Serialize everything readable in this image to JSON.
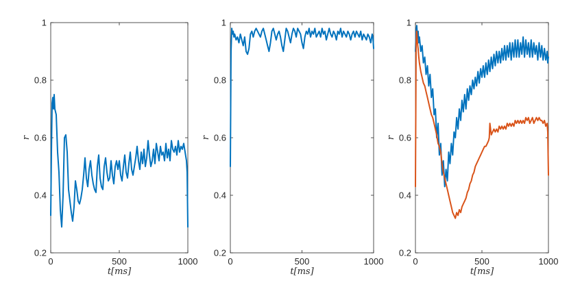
{
  "chart_data": [
    {
      "type": "line",
      "title": "",
      "xlabel": "t[ms]",
      "ylabel": "r",
      "xlim": [
        0,
        1000
      ],
      "ylim": [
        0.2,
        1
      ],
      "xticks": [
        "0",
        "500",
        "1000"
      ],
      "yticks": [
        "0.2",
        "0.4",
        "0.6",
        "0.8",
        "1"
      ],
      "series": [
        {
          "color": "#0072BD",
          "x": [
            0,
            5,
            10,
            15,
            20,
            25,
            30,
            40,
            50,
            60,
            70,
            80,
            90,
            100,
            110,
            120,
            130,
            140,
            150,
            160,
            170,
            180,
            190,
            200,
            210,
            220,
            230,
            240,
            250,
            260,
            270,
            280,
            290,
            300,
            310,
            320,
            330,
            340,
            350,
            360,
            370,
            380,
            390,
            400,
            410,
            420,
            430,
            440,
            450,
            460,
            470,
            480,
            490,
            500,
            510,
            520,
            530,
            540,
            550,
            560,
            570,
            580,
            590,
            600,
            610,
            620,
            630,
            640,
            650,
            660,
            670,
            680,
            690,
            700,
            710,
            720,
            730,
            740,
            750,
            760,
            770,
            780,
            790,
            800,
            810,
            820,
            830,
            840,
            850,
            860,
            870,
            880,
            890,
            900,
            910,
            920,
            930,
            940,
            950,
            960,
            970,
            980,
            990,
            995,
            1000
          ],
          "values": [
            0.33,
            0.55,
            0.72,
            0.74,
            0.7,
            0.75,
            0.7,
            0.68,
            0.55,
            0.48,
            0.35,
            0.29,
            0.4,
            0.6,
            0.61,
            0.55,
            0.42,
            0.38,
            0.34,
            0.31,
            0.36,
            0.45,
            0.42,
            0.38,
            0.37,
            0.39,
            0.42,
            0.47,
            0.53,
            0.46,
            0.43,
            0.49,
            0.52,
            0.47,
            0.44,
            0.42,
            0.41,
            0.5,
            0.54,
            0.46,
            0.43,
            0.42,
            0.5,
            0.53,
            0.48,
            0.45,
            0.46,
            0.52,
            0.47,
            0.44,
            0.5,
            0.52,
            0.49,
            0.52,
            0.47,
            0.45,
            0.5,
            0.54,
            0.48,
            0.46,
            0.51,
            0.55,
            0.49,
            0.47,
            0.5,
            0.53,
            0.57,
            0.52,
            0.49,
            0.55,
            0.51,
            0.56,
            0.5,
            0.53,
            0.59,
            0.54,
            0.5,
            0.52,
            0.56,
            0.51,
            0.58,
            0.55,
            0.52,
            0.57,
            0.54,
            0.55,
            0.52,
            0.58,
            0.53,
            0.56,
            0.52,
            0.59,
            0.56,
            0.55,
            0.57,
            0.54,
            0.59,
            0.55,
            0.57,
            0.56,
            0.58,
            0.55,
            0.52,
            0.48,
            0.29
          ]
        }
      ]
    },
    {
      "type": "line",
      "title": "",
      "xlabel": "t[ms]",
      "ylabel": "r",
      "xlim": [
        0,
        1000
      ],
      "ylim": [
        0.2,
        1
      ],
      "xticks": [
        "0",
        "500",
        "1000"
      ],
      "yticks": [
        "0.2",
        "0.4",
        "0.6",
        "0.8",
        "1"
      ],
      "series": [
        {
          "color": "#0072BD",
          "x": [
            0,
            5,
            10,
            15,
            20,
            25,
            30,
            40,
            50,
            60,
            70,
            80,
            90,
            100,
            110,
            120,
            130,
            140,
            150,
            160,
            170,
            180,
            190,
            200,
            210,
            220,
            230,
            240,
            250,
            260,
            270,
            280,
            290,
            300,
            310,
            320,
            330,
            340,
            350,
            360,
            370,
            380,
            390,
            400,
            410,
            420,
            430,
            440,
            450,
            460,
            470,
            480,
            490,
            500,
            510,
            520,
            530,
            540,
            550,
            560,
            570,
            580,
            590,
            600,
            610,
            620,
            630,
            640,
            650,
            660,
            670,
            680,
            690,
            700,
            710,
            720,
            730,
            740,
            750,
            760,
            770,
            780,
            790,
            800,
            810,
            820,
            830,
            840,
            850,
            860,
            870,
            880,
            890,
            900,
            910,
            920,
            930,
            940,
            950,
            960,
            970,
            980,
            990,
            995,
            1000
          ],
          "values": [
            0.5,
            0.9,
            0.98,
            0.96,
            0.97,
            0.95,
            0.96,
            0.94,
            0.95,
            0.93,
            0.96,
            0.94,
            0.92,
            0.95,
            0.9,
            0.89,
            0.91,
            0.96,
            0.97,
            0.95,
            0.97,
            0.98,
            0.97,
            0.96,
            0.95,
            0.97,
            0.98,
            0.96,
            0.94,
            0.92,
            0.9,
            0.93,
            0.97,
            0.98,
            0.96,
            0.94,
            0.96,
            0.97,
            0.95,
            0.92,
            0.9,
            0.94,
            0.98,
            0.97,
            0.95,
            0.93,
            0.96,
            0.98,
            0.97,
            0.95,
            0.98,
            0.97,
            0.96,
            0.93,
            0.91,
            0.95,
            0.97,
            0.96,
            0.98,
            0.95,
            0.97,
            0.96,
            0.98,
            0.95,
            0.96,
            0.97,
            0.95,
            0.98,
            0.96,
            0.97,
            0.94,
            0.96,
            0.98,
            0.96,
            0.95,
            0.97,
            0.96,
            0.94,
            0.97,
            0.96,
            0.98,
            0.95,
            0.97,
            0.96,
            0.95,
            0.97,
            0.96,
            0.94,
            0.96,
            0.97,
            0.95,
            0.97,
            0.96,
            0.95,
            0.97,
            0.94,
            0.96,
            0.95,
            0.94,
            0.96,
            0.95,
            0.93,
            0.96,
            0.95,
            0.91
          ]
        }
      ]
    },
    {
      "type": "line",
      "title": "",
      "xlabel": "t[ms]",
      "ylabel": "r",
      "xlim": [
        0,
        1000
      ],
      "ylim": [
        0.2,
        1
      ],
      "xticks": [
        "0",
        "500",
        "1000"
      ],
      "yticks": [
        "0.2",
        "0.4",
        "0.6",
        "0.8",
        "1"
      ],
      "series": [
        {
          "color": "#0072BD",
          "x": [
            0,
            5,
            10,
            15,
            20,
            25,
            30,
            40,
            50,
            60,
            70,
            80,
            90,
            100,
            110,
            120,
            130,
            140,
            150,
            160,
            170,
            180,
            190,
            200,
            210,
            220,
            230,
            240,
            250,
            260,
            270,
            280,
            290,
            300,
            310,
            320,
            330,
            340,
            350,
            360,
            370,
            380,
            390,
            400,
            410,
            420,
            430,
            440,
            450,
            460,
            470,
            480,
            490,
            500,
            510,
            520,
            530,
            540,
            550,
            560,
            570,
            580,
            590,
            600,
            610,
            620,
            630,
            640,
            650,
            660,
            670,
            680,
            690,
            700,
            710,
            720,
            730,
            740,
            750,
            760,
            770,
            780,
            790,
            800,
            810,
            820,
            830,
            840,
            850,
            860,
            870,
            880,
            890,
            900,
            910,
            920,
            930,
            940,
            950,
            960,
            970,
            980,
            990,
            995,
            1000
          ],
          "values": [
            0.9,
            0.97,
            0.99,
            0.95,
            0.97,
            0.93,
            0.95,
            0.9,
            0.92,
            0.86,
            0.88,
            0.82,
            0.85,
            0.78,
            0.82,
            0.74,
            0.77,
            0.68,
            0.7,
            0.6,
            0.65,
            0.54,
            0.58,
            0.47,
            0.52,
            0.43,
            0.49,
            0.45,
            0.55,
            0.51,
            0.58,
            0.54,
            0.62,
            0.6,
            0.67,
            0.63,
            0.7,
            0.66,
            0.73,
            0.69,
            0.75,
            0.7,
            0.77,
            0.73,
            0.78,
            0.75,
            0.8,
            0.77,
            0.81,
            0.78,
            0.83,
            0.79,
            0.84,
            0.81,
            0.85,
            0.81,
            0.86,
            0.82,
            0.87,
            0.83,
            0.88,
            0.84,
            0.89,
            0.85,
            0.9,
            0.86,
            0.9,
            0.86,
            0.91,
            0.87,
            0.92,
            0.87,
            0.92,
            0.88,
            0.93,
            0.87,
            0.93,
            0.88,
            0.94,
            0.88,
            0.94,
            0.88,
            0.93,
            0.89,
            0.95,
            0.88,
            0.94,
            0.89,
            0.93,
            0.88,
            0.94,
            0.88,
            0.93,
            0.89,
            0.92,
            0.87,
            0.93,
            0.88,
            0.92,
            0.87,
            0.91,
            0.87,
            0.9,
            0.86,
            0.88
          ]
        },
        {
          "color": "#D95319",
          "x": [
            0,
            5,
            10,
            15,
            20,
            25,
            30,
            40,
            50,
            60,
            70,
            80,
            90,
            100,
            110,
            120,
            130,
            140,
            150,
            160,
            170,
            180,
            190,
            200,
            210,
            220,
            230,
            240,
            250,
            260,
            270,
            280,
            290,
            300,
            310,
            320,
            330,
            340,
            350,
            360,
            370,
            380,
            390,
            400,
            410,
            420,
            430,
            440,
            450,
            460,
            470,
            480,
            490,
            500,
            510,
            520,
            530,
            540,
            550,
            555,
            560,
            565,
            570,
            580,
            590,
            600,
            610,
            620,
            630,
            640,
            650,
            660,
            670,
            680,
            690,
            700,
            710,
            720,
            730,
            740,
            750,
            760,
            770,
            780,
            790,
            800,
            810,
            820,
            830,
            840,
            850,
            860,
            870,
            880,
            890,
            900,
            910,
            920,
            930,
            940,
            950,
            960,
            970,
            980,
            990,
            995,
            1000
          ],
          "values": [
            0.43,
            0.93,
            0.97,
            0.93,
            0.91,
            0.88,
            0.86,
            0.83,
            0.81,
            0.79,
            0.78,
            0.76,
            0.74,
            0.72,
            0.7,
            0.68,
            0.67,
            0.65,
            0.63,
            0.61,
            0.58,
            0.57,
            0.55,
            0.51,
            0.48,
            0.46,
            0.44,
            0.42,
            0.4,
            0.38,
            0.36,
            0.34,
            0.33,
            0.32,
            0.34,
            0.33,
            0.35,
            0.34,
            0.36,
            0.37,
            0.38,
            0.39,
            0.41,
            0.42,
            0.44,
            0.45,
            0.47,
            0.48,
            0.5,
            0.51,
            0.52,
            0.53,
            0.54,
            0.55,
            0.56,
            0.57,
            0.57,
            0.58,
            0.59,
            0.6,
            0.65,
            0.63,
            0.61,
            0.62,
            0.63,
            0.62,
            0.63,
            0.62,
            0.64,
            0.63,
            0.64,
            0.63,
            0.64,
            0.63,
            0.65,
            0.64,
            0.65,
            0.64,
            0.65,
            0.64,
            0.66,
            0.65,
            0.66,
            0.65,
            0.66,
            0.65,
            0.66,
            0.65,
            0.67,
            0.66,
            0.67,
            0.65,
            0.66,
            0.67,
            0.65,
            0.66,
            0.67,
            0.66,
            0.67,
            0.66,
            0.66,
            0.65,
            0.66,
            0.64,
            0.65,
            0.62,
            0.47
          ]
        }
      ]
    }
  ]
}
